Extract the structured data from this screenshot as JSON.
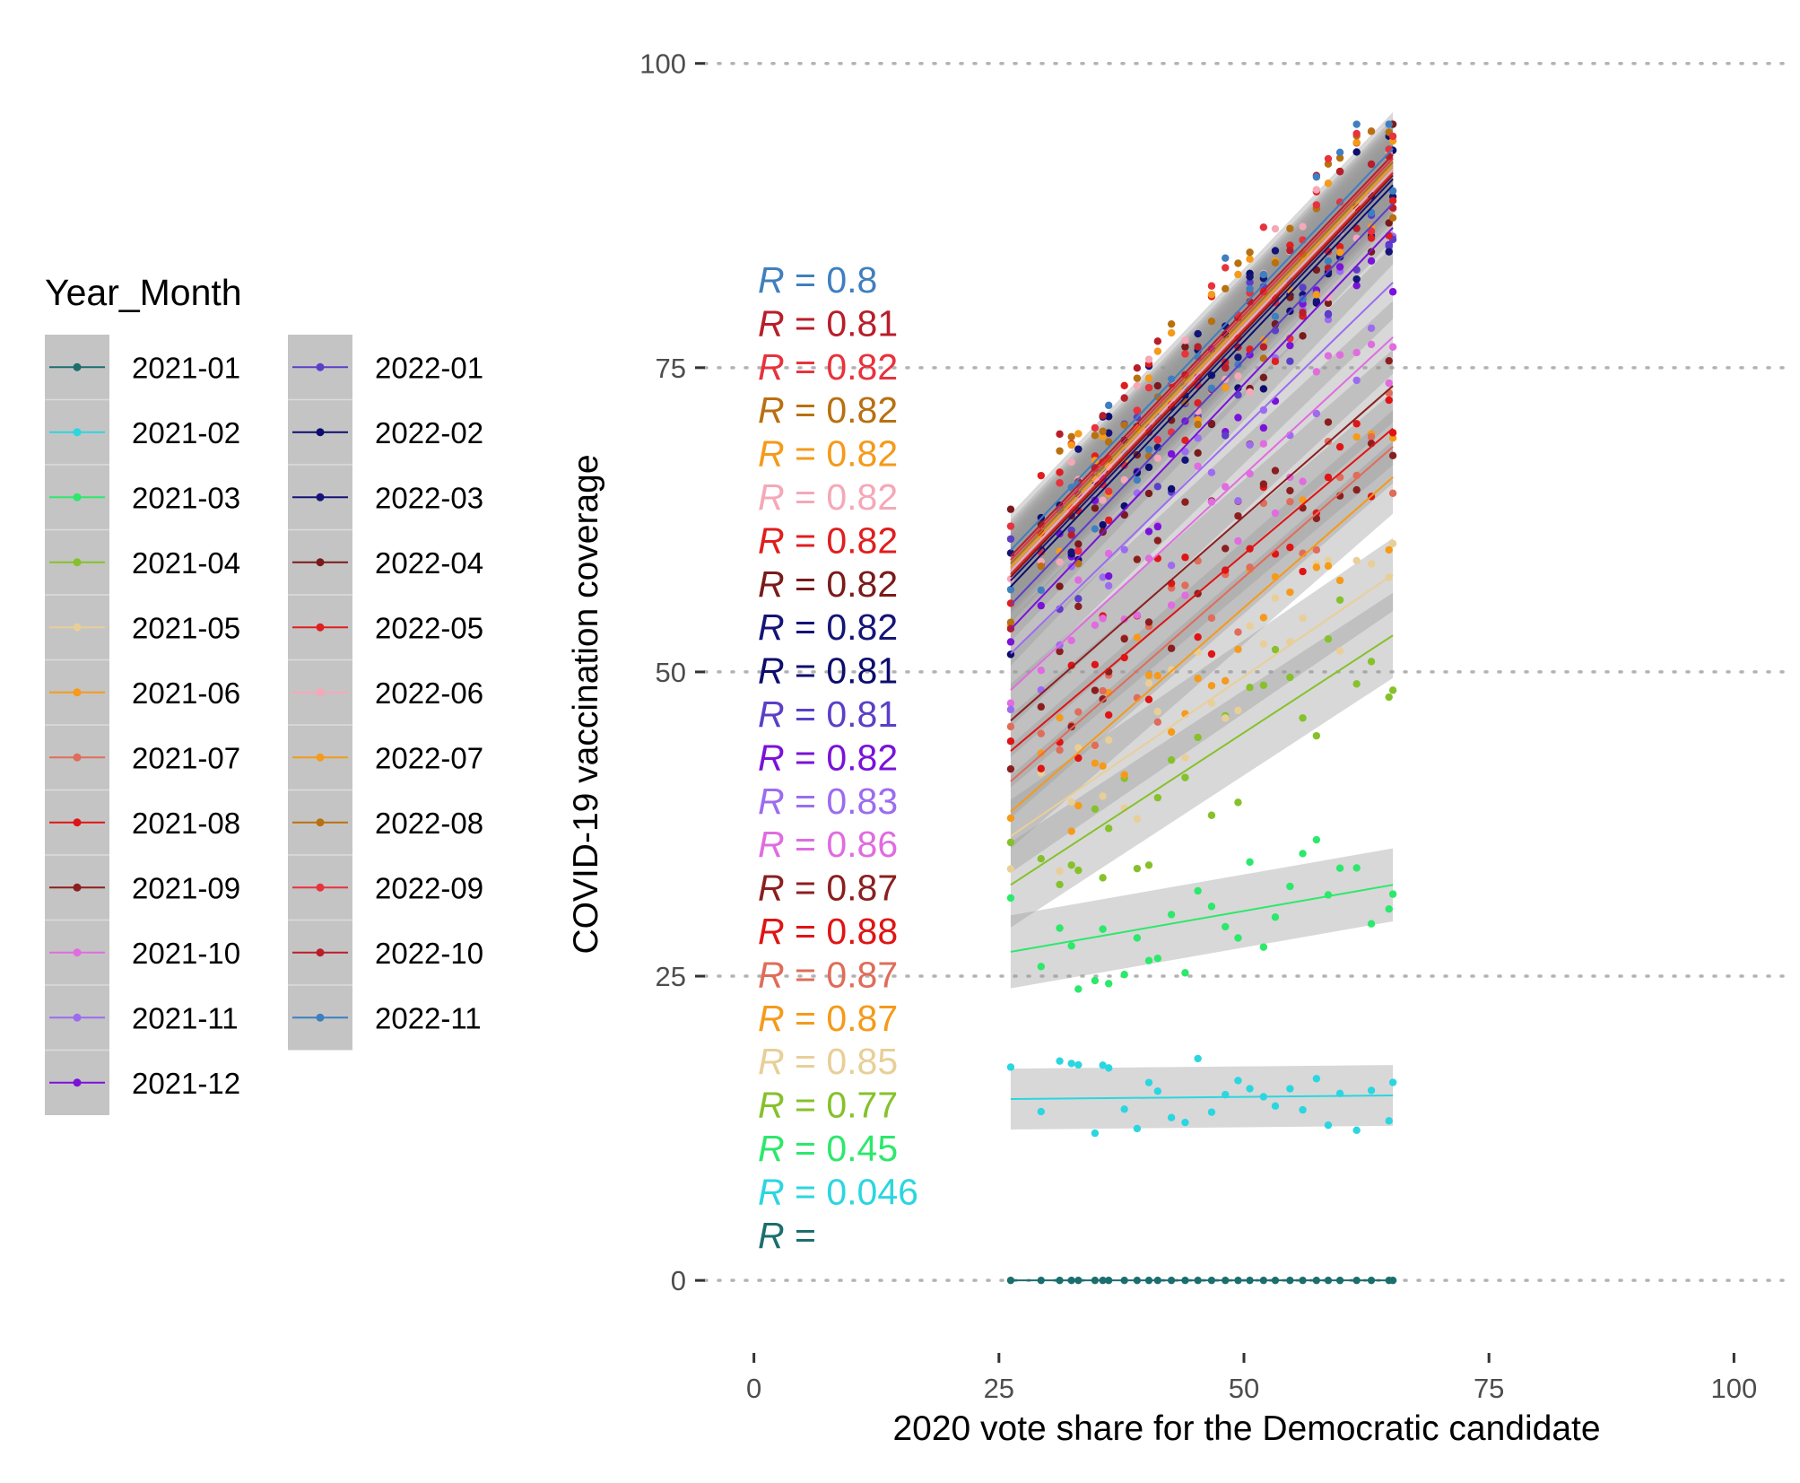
{
  "chart_data": {
    "type": "scatter",
    "title": "",
    "xlabel": "2020 vote share for the Democratic candidate",
    "ylabel": "COVID-19 vaccination coverage",
    "xlim": [
      -5,
      105
    ],
    "ylim": [
      -5,
      103
    ],
    "x_ticks": [
      0,
      25,
      50,
      75,
      100
    ],
    "y_ticks": [
      0,
      25,
      50,
      75,
      100
    ],
    "grid": "horizontal dotted at y ticks",
    "legend": {
      "title": "Year_Month",
      "placement": "left",
      "columns": [
        [
          "2021-01",
          "2021-02",
          "2021-03",
          "2021-04",
          "2021-05",
          "2021-06",
          "2021-07",
          "2021-08",
          "2021-09",
          "2021-10",
          "2021-11",
          "2021-12"
        ],
        [
          "2022-01",
          "2022-02",
          "2022-03",
          "2022-04",
          "2022-05",
          "2022-06",
          "2022-07",
          "2022-08",
          "2022-09",
          "2022-10",
          "2022-11"
        ]
      ]
    },
    "x_points": [
      26.2,
      29.3,
      31.2,
      32.4,
      33.1,
      34.8,
      35.6,
      36.2,
      37.8,
      39.1,
      40.3,
      41.2,
      42.6,
      44.0,
      45.3,
      46.7,
      48.1,
      49.4,
      50.6,
      52.0,
      53.2,
      54.7,
      56.0,
      57.4,
      58.6,
      59.8,
      61.5,
      63.0,
      64.8,
      65.2
    ],
    "series": [
      {
        "name": "2021-01",
        "color": "#1b6e6e",
        "fit": [
          0.0,
          0.0
        ],
        "r_label": "R =",
        "band": 0
      },
      {
        "name": "2021-02",
        "color": "#2bd6e0",
        "fit": [
          14.9,
          15.2
        ],
        "r_label": "R = 0.046",
        "band": 2.5
      },
      {
        "name": "2021-03",
        "color": "#2ce86b",
        "fit": [
          27.0,
          32.5
        ],
        "r_label": "R = 0.45",
        "band": 3
      },
      {
        "name": "2021-04",
        "color": "#86c12c",
        "fit": [
          32.5,
          53.0
        ],
        "r_label": "R = 0.77",
        "band": 3.5
      },
      {
        "name": "2021-05",
        "color": "#e8cf98",
        "fit": [
          36.5,
          58.0
        ],
        "r_label": "R = 0.85",
        "band": 3
      },
      {
        "name": "2021-06",
        "color": "#f59a1a",
        "fit": [
          38.5,
          66.0
        ],
        "r_label": "R = 0.87",
        "band": 3
      },
      {
        "name": "2021-07",
        "color": "#e06c5a",
        "fit": [
          41.0,
          68.5
        ],
        "r_label": "R = 0.87",
        "band": 3
      },
      {
        "name": "2021-08",
        "color": "#e01414",
        "fit": [
          43.5,
          70.0
        ],
        "r_label": "R = 0.88",
        "band": 3
      },
      {
        "name": "2021-09",
        "color": "#8b1f1f",
        "fit": [
          46.0,
          73.5
        ],
        "r_label": "R = 0.87",
        "band": 3
      },
      {
        "name": "2021-10",
        "color": "#e06ce0",
        "fit": [
          48.5,
          77.5
        ],
        "r_label": "R = 0.86",
        "band": 3
      },
      {
        "name": "2021-11",
        "color": "#9c6cf0",
        "fit": [
          51.5,
          82.0
        ],
        "r_label": "R = 0.83",
        "band": 3
      },
      {
        "name": "2021-12",
        "color": "#7a12d9",
        "fit": [
          53.5,
          86.5
        ],
        "r_label": "R = 0.82",
        "band": 3
      },
      {
        "name": "2022-01",
        "color": "#5b3fc8",
        "fit": [
          55.5,
          88.5
        ],
        "r_label": "R = 0.81",
        "band": 3
      },
      {
        "name": "2022-02",
        "color": "#0d0d6e",
        "fit": [
          57.0,
          90.0
        ],
        "r_label": "R = 0.81",
        "band": 3
      },
      {
        "name": "2022-03",
        "color": "#141478",
        "fit": [
          57.5,
          90.5
        ],
        "r_label": "R = 0.82",
        "band": 3
      },
      {
        "name": "2022-04",
        "color": "#7a1a1a",
        "fit": [
          57.8,
          90.8
        ],
        "r_label": "R = 0.82",
        "band": 3
      },
      {
        "name": "2022-05",
        "color": "#e01e1e",
        "fit": [
          58.0,
          91.0
        ],
        "r_label": "R = 0.82",
        "band": 3
      },
      {
        "name": "2022-06",
        "color": "#f5a8b8",
        "fit": [
          58.3,
          91.3
        ],
        "r_label": "R = 0.82",
        "band": 3
      },
      {
        "name": "2022-07",
        "color": "#f59a1a",
        "fit": [
          58.6,
          91.6
        ],
        "r_label": "R = 0.82",
        "band": 3
      },
      {
        "name": "2022-08",
        "color": "#b87010",
        "fit": [
          58.9,
          91.9
        ],
        "r_label": "R = 0.82",
        "band": 3
      },
      {
        "name": "2022-09",
        "color": "#e8323c",
        "fit": [
          59.2,
          92.2
        ],
        "r_label": "R = 0.82",
        "band": 3
      },
      {
        "name": "2022-10",
        "color": "#b81e2a",
        "fit": [
          59.5,
          92.5
        ],
        "r_label": "R = 0.81",
        "band": 3
      },
      {
        "name": "2022-11",
        "color": "#3f7fbf",
        "fit": [
          60.0,
          93.0
        ],
        "r_label": "R = 0.8",
        "band": 3
      }
    ]
  }
}
